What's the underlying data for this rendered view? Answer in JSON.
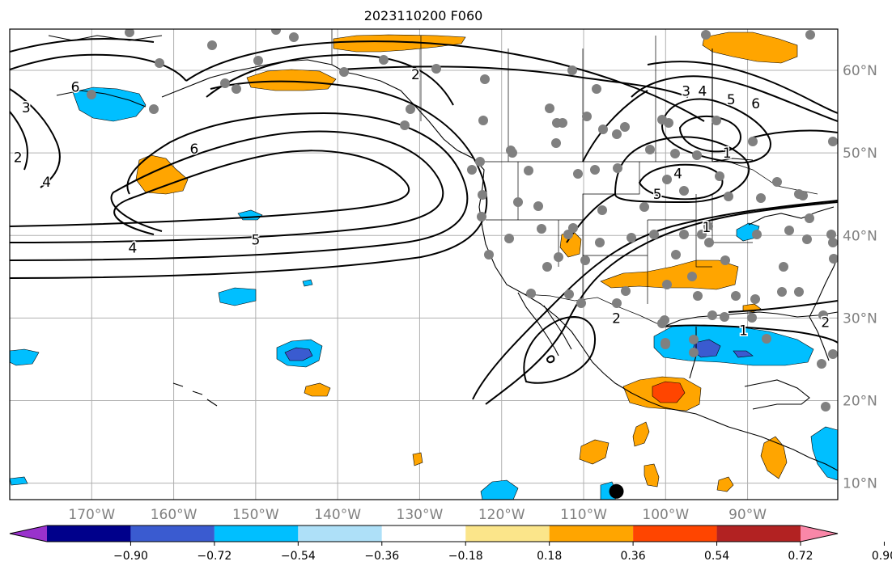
{
  "title": "2023110200 F060",
  "map": {
    "projection": "plate-carree",
    "lon_range": [
      -180,
      -79
    ],
    "lat_range": [
      8,
      65
    ],
    "gridlines": true,
    "lon_ticks": [
      {
        "value": -170,
        "label": "170°W"
      },
      {
        "value": -160,
        "label": "160°W"
      },
      {
        "value": -150,
        "label": "150°W"
      },
      {
        "value": -140,
        "label": "140°W"
      },
      {
        "value": -130,
        "label": "130°W"
      },
      {
        "value": -120,
        "label": "120°W"
      },
      {
        "value": -110,
        "label": "110°W"
      },
      {
        "value": -100,
        "label": "100°W"
      },
      {
        "value": -90,
        "label": "90°W"
      }
    ],
    "lat_ticks": [
      {
        "value": 10,
        "label": "10°N"
      },
      {
        "value": 20,
        "label": "20°N"
      },
      {
        "value": 30,
        "label": "30°N"
      },
      {
        "value": 40,
        "label": "40°N"
      },
      {
        "value": 50,
        "label": "50°N"
      },
      {
        "value": 60,
        "label": "60°N"
      }
    ],
    "contour_labels": [
      {
        "text": "2",
        "lon": -130.5,
        "lat": 59.5
      },
      {
        "text": "6",
        "lon": -157.5,
        "lat": 50.5
      },
      {
        "text": "5",
        "lon": -150,
        "lat": 39.5
      },
      {
        "text": "4",
        "lon": -165,
        "lat": 38.5
      },
      {
        "text": "3",
        "lon": -97.5,
        "lat": 57.5
      },
      {
        "text": "4",
        "lon": -95.5,
        "lat": 57.5
      },
      {
        "text": "5",
        "lon": -92,
        "lat": 56.5
      },
      {
        "text": "6",
        "lon": -89,
        "lat": 56
      },
      {
        "text": "1",
        "lon": -92.5,
        "lat": 50
      },
      {
        "text": "4",
        "lon": -98.5,
        "lat": 47.5
      },
      {
        "text": "5",
        "lon": -101,
        "lat": 45
      },
      {
        "text": "1",
        "lon": -95,
        "lat": 41
      },
      {
        "text": "2",
        "lon": -106,
        "lat": 30
      },
      {
        "text": "1",
        "lon": -90.5,
        "lat": 28.5
      },
      {
        "text": "2",
        "lon": -80.5,
        "lat": 29.5
      },
      {
        "text": "2",
        "lon": -179,
        "lat": 49.5
      },
      {
        "text": "3",
        "lon": -178,
        "lat": 55.5
      },
      {
        "text": "4",
        "lon": -175.5,
        "lat": 46.5
      },
      {
        "text": "6",
        "lon": -172,
        "lat": 58
      }
    ],
    "station_marker": {
      "lon": -106,
      "lat": 9
    }
  },
  "colorbar": {
    "ticks": [
      "−0.90",
      "−0.72",
      "−0.54",
      "−0.36",
      "−0.18",
      "0.18",
      "0.36",
      "0.54",
      "0.72",
      "0.90"
    ],
    "colors": [
      "#9932cc",
      "#00008b",
      "#3a5bd0",
      "#00bfff",
      "#aee0f8",
      "#ffffff",
      "#fbe58a",
      "#ffa500",
      "#ff4500",
      "#b22222",
      "#f987a8"
    ]
  }
}
